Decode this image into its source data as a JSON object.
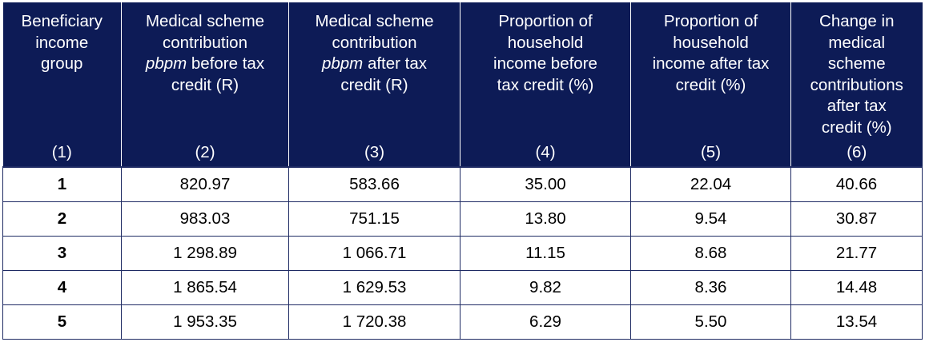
{
  "header": [
    {
      "lines": [
        "Beneficiary",
        "income",
        "group"
      ],
      "num": "(1)"
    },
    {
      "lines": [
        "Medical scheme",
        "contribution",
        [
          "pbpm",
          " before tax"
        ],
        "credit (R)"
      ],
      "num": "(2)"
    },
    {
      "lines": [
        "Medical scheme",
        "contribution",
        [
          "pbpm",
          " after tax"
        ],
        "credit (R)"
      ],
      "num": "(3)"
    },
    {
      "lines": [
        "Proportion of",
        "household",
        "income before",
        "tax credit (%)"
      ],
      "num": "(4)"
    },
    {
      "lines": [
        "Proportion of",
        "household",
        "income after tax",
        "credit (%)"
      ],
      "num": "(5)"
    },
    {
      "lines": [
        "Change in",
        "medical",
        "scheme",
        "contributions",
        "after tax",
        "credit (%)"
      ],
      "num": "(6)"
    }
  ],
  "rows": [
    {
      "group": "1",
      "before": "820.97",
      "after": "583.66",
      "prop_before": "35.00",
      "prop_after": "22.04",
      "change": "40.66"
    },
    {
      "group": "2",
      "before": "983.03",
      "after": "751.15",
      "prop_before": "13.80",
      "prop_after": "9.54",
      "change": "30.87"
    },
    {
      "group": "3",
      "before": "1 298.89",
      "after": "1 066.71",
      "prop_before": "11.15",
      "prop_after": "8.68",
      "change": "21.77"
    },
    {
      "group": "4",
      "before": "1 865.54",
      "after": "1 629.53",
      "prop_before": "9.82",
      "prop_after": "8.36",
      "change": "14.48"
    },
    {
      "group": "5",
      "before": "1 953.35",
      "after": "1 720.38",
      "prop_before": "6.29",
      "prop_after": "5.50",
      "change": "13.54"
    }
  ]
}
